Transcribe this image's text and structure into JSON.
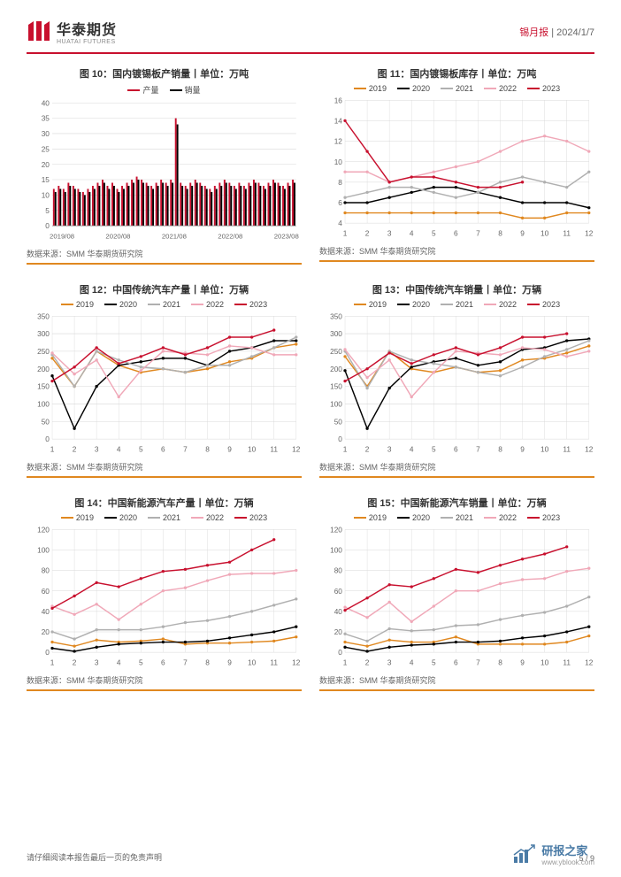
{
  "header": {
    "logo_cn": "华泰期货",
    "logo_en": "HUATAI FUTURES",
    "report_type": "锡月报",
    "date": "2024/1/7"
  },
  "footer": {
    "disclaimer": "请仔细阅读本报告最后一页的免责声明",
    "page": "5 / 9"
  },
  "watermark": {
    "cn": "研报之家",
    "url": "www.yblook.com"
  },
  "source_text": "数据来源：SMM 华泰期货研究院",
  "colors": {
    "red": "#c8102e",
    "black": "#000000",
    "orange": "#e08820",
    "lt_gray": "#b0b0b0",
    "pink": "#f0a8b8",
    "grid": "#d8d8d8",
    "axis": "#888",
    "title": "#333"
  },
  "chart10": {
    "title": "图 10：国内镀锡板产销量丨单位：万吨",
    "legend": [
      {
        "label": "产量",
        "color": "#c8102e"
      },
      {
        "label": "销量",
        "color": "#000000"
      }
    ],
    "x_labels": [
      "2019/08",
      "2020/08",
      "2021/08",
      "2022/08",
      "2023/08"
    ],
    "ylim": [
      0,
      40
    ],
    "ytick_step": 5,
    "n_bars": 50,
    "prod": [
      12,
      13,
      12,
      14,
      13,
      12,
      11,
      12,
      13,
      14,
      15,
      13,
      14,
      12,
      13,
      14,
      15,
      16,
      15,
      14,
      13,
      14,
      15,
      14,
      15,
      35,
      14,
      13,
      14,
      15,
      14,
      13,
      12,
      13,
      14,
      15,
      14,
      13,
      14,
      13,
      14,
      15,
      14,
      13,
      14,
      15,
      14,
      13,
      14,
      15
    ],
    "sales": [
      11,
      12,
      11,
      13,
      12,
      11,
      10,
      11,
      12,
      13,
      14,
      12,
      13,
      11,
      12,
      13,
      14,
      15,
      14,
      13,
      12,
      13,
      14,
      13,
      14,
      33,
      13,
      12,
      13,
      14,
      13,
      12,
      11,
      12,
      13,
      14,
      13,
      12,
      13,
      12,
      13,
      14,
      13,
      12,
      13,
      14,
      13,
      12,
      13,
      14
    ],
    "bar_color_prod": "#c8102e",
    "bar_color_sales": "#000000",
    "background": "#ffffff"
  },
  "chart11": {
    "title": "图 11：国内镀锡板库存丨单位：万吨",
    "legend": [
      {
        "label": "2019",
        "color": "#e08820"
      },
      {
        "label": "2020",
        "color": "#000000"
      },
      {
        "label": "2021",
        "color": "#b0b0b0"
      },
      {
        "label": "2022",
        "color": "#f0a8b8"
      },
      {
        "label": "2023",
        "color": "#c8102e"
      }
    ],
    "x_labels": [
      "1",
      "2",
      "3",
      "4",
      "5",
      "6",
      "7",
      "8",
      "9",
      "10",
      "11",
      "12"
    ],
    "ylim": [
      4,
      16
    ],
    "yticks": [
      4,
      6,
      8,
      10,
      12,
      14,
      16
    ],
    "series": {
      "2019": [
        5,
        5,
        5,
        5,
        5,
        5,
        5,
        5,
        4.5,
        4.5,
        5,
        5
      ],
      "2020": [
        6,
        6,
        6.5,
        7,
        7.5,
        7.5,
        7,
        6.5,
        6,
        6,
        6,
        5.5
      ],
      "2021": [
        6.5,
        7,
        7.5,
        7.5,
        7,
        6.5,
        7,
        8,
        8.5,
        8,
        7.5,
        9
      ],
      "2022": [
        9,
        9,
        8,
        8.5,
        9,
        9.5,
        10,
        11,
        12,
        12.5,
        12,
        11
      ],
      "2023": [
        14,
        11,
        8,
        8.5,
        8.5,
        8,
        7.5,
        7.5,
        8,
        null,
        null,
        null
      ]
    }
  },
  "chart12": {
    "title": "图 12：中国传统汽车产量丨单位：万辆",
    "legend": [
      {
        "label": "2019",
        "color": "#e08820"
      },
      {
        "label": "2020",
        "color": "#000000"
      },
      {
        "label": "2021",
        "color": "#b0b0b0"
      },
      {
        "label": "2022",
        "color": "#f0a8b8"
      },
      {
        "label": "2023",
        "color": "#c8102e"
      }
    ],
    "x_labels": [
      "1",
      "2",
      "3",
      "4",
      "5",
      "6",
      "7",
      "8",
      "9",
      "10",
      "11",
      "12"
    ],
    "ylim": [
      0,
      350
    ],
    "ytick_step": 50,
    "series": {
      "2019": [
        230,
        150,
        250,
        210,
        190,
        200,
        190,
        200,
        220,
        230,
        260,
        270
      ],
      "2020": [
        180,
        30,
        150,
        210,
        220,
        230,
        230,
        210,
        250,
        260,
        280,
        280
      ],
      "2021": [
        240,
        150,
        250,
        225,
        205,
        200,
        190,
        210,
        210,
        235,
        260,
        290
      ],
      "2022": [
        245,
        185,
        225,
        120,
        195,
        250,
        245,
        240,
        265,
        260,
        240,
        240
      ],
      "2023": [
        165,
        205,
        260,
        215,
        235,
        260,
        240,
        260,
        290,
        290,
        310,
        null
      ]
    }
  },
  "chart13": {
    "title": "图 13：中国传统汽车销量丨单位：万辆",
    "legend": [
      {
        "label": "2019",
        "color": "#e08820"
      },
      {
        "label": "2020",
        "color": "#000000"
      },
      {
        "label": "2021",
        "color": "#b0b0b0"
      },
      {
        "label": "2022",
        "color": "#f0a8b8"
      },
      {
        "label": "2023",
        "color": "#c8102e"
      }
    ],
    "x_labels": [
      "1",
      "2",
      "3",
      "4",
      "5",
      "6",
      "7",
      "8",
      "9",
      "10",
      "11",
      "12"
    ],
    "ylim": [
      0,
      350
    ],
    "ytick_step": 50,
    "series": {
      "2019": [
        235,
        150,
        250,
        200,
        190,
        205,
        190,
        195,
        225,
        230,
        245,
        265
      ],
      "2020": [
        195,
        30,
        145,
        205,
        220,
        230,
        210,
        220,
        255,
        260,
        280,
        285
      ],
      "2021": [
        250,
        145,
        250,
        225,
        215,
        205,
        190,
        180,
        205,
        235,
        255,
        280
      ],
      "2022": [
        255,
        175,
        225,
        120,
        190,
        250,
        245,
        240,
        260,
        255,
        235,
        250
      ],
      "2023": [
        165,
        200,
        245,
        215,
        240,
        260,
        240,
        260,
        290,
        290,
        300,
        null
      ]
    }
  },
  "chart14": {
    "title": "图 14：中国新能源汽车产量丨单位：万辆",
    "legend": [
      {
        "label": "2019",
        "color": "#e08820"
      },
      {
        "label": "2020",
        "color": "#000000"
      },
      {
        "label": "2021",
        "color": "#b0b0b0"
      },
      {
        "label": "2022",
        "color": "#f0a8b8"
      },
      {
        "label": "2023",
        "color": "#c8102e"
      }
    ],
    "x_labels": [
      "1",
      "2",
      "3",
      "4",
      "5",
      "6",
      "7",
      "8",
      "9",
      "10",
      "11",
      "12"
    ],
    "ylim": [
      0,
      120
    ],
    "ytick_step": 20,
    "series": {
      "2019": [
        10,
        6,
        12,
        10,
        11,
        13,
        8,
        9,
        9,
        10,
        11,
        15
      ],
      "2020": [
        4,
        1,
        5,
        8,
        9,
        10,
        10,
        11,
        14,
        17,
        20,
        25
      ],
      "2021": [
        20,
        13,
        22,
        22,
        22,
        25,
        29,
        31,
        35,
        40,
        46,
        52
      ],
      "2022": [
        45,
        37,
        47,
        32,
        47,
        60,
        63,
        70,
        76,
        77,
        77,
        80
      ],
      "2023": [
        43,
        55,
        68,
        64,
        72,
        79,
        81,
        85,
        88,
        100,
        110,
        null
      ]
    }
  },
  "chart15": {
    "title": "图 15：中国新能源汽车销量丨单位：万辆",
    "legend": [
      {
        "label": "2019",
        "color": "#e08820"
      },
      {
        "label": "2020",
        "color": "#000000"
      },
      {
        "label": "2021",
        "color": "#b0b0b0"
      },
      {
        "label": "2022",
        "color": "#f0a8b8"
      },
      {
        "label": "2023",
        "color": "#c8102e"
      }
    ],
    "x_labels": [
      "1",
      "2",
      "3",
      "4",
      "5",
      "6",
      "7",
      "8",
      "9",
      "10",
      "11",
      "12"
    ],
    "ylim": [
      0,
      120
    ],
    "ytick_step": 20,
    "series": {
      "2019": [
        10,
        6,
        12,
        10,
        10,
        15,
        8,
        8,
        8,
        8,
        10,
        16
      ],
      "2020": [
        5,
        1,
        5,
        7,
        8,
        10,
        10,
        11,
        14,
        16,
        20,
        25
      ],
      "2021": [
        18,
        11,
        23,
        21,
        22,
        26,
        27,
        32,
        36,
        39,
        45,
        54
      ],
      "2022": [
        44,
        34,
        49,
        30,
        45,
        60,
        60,
        67,
        71,
        72,
        79,
        82
      ],
      "2023": [
        41,
        53,
        66,
        64,
        72,
        81,
        78,
        85,
        91,
        96,
        103,
        null
      ]
    }
  }
}
